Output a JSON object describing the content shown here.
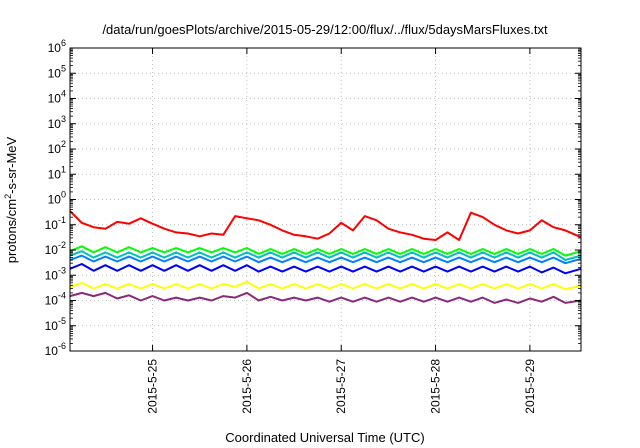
{
  "chart_data": {
    "type": "line",
    "title": "/data/run/goesPlots/archive/2015-05-29/12:00/flux/../flux/5daysMarsFluxes.txt",
    "xlabel": "Coordinated Universal Time (UTC)",
    "ylabel": {
      "pre": "protons/cm",
      "sup": "2",
      "post": "-s-sr-MeV"
    },
    "y_scale": "log",
    "ylim": [
      1e-06,
      1000000.0
    ],
    "y_ticks": [
      {
        "value": 1e-06,
        "base": "10",
        "exp": "-6"
      },
      {
        "value": 1e-05,
        "base": "10",
        "exp": "-5"
      },
      {
        "value": 0.0001,
        "base": "10",
        "exp": "-4"
      },
      {
        "value": 0.001,
        "base": "10",
        "exp": "-3"
      },
      {
        "value": 0.01,
        "base": "10",
        "exp": "-2"
      },
      {
        "value": 0.1,
        "base": "10",
        "exp": "-1"
      },
      {
        "value": 1,
        "base": "10",
        "exp": "0"
      },
      {
        "value": 10,
        "base": "10",
        "exp": "1"
      },
      {
        "value": 100,
        "base": "10",
        "exp": "2"
      },
      {
        "value": 1000,
        "base": "10",
        "exp": "3"
      },
      {
        "value": 10000,
        "base": "10",
        "exp": "4"
      },
      {
        "value": 100000,
        "base": "10",
        "exp": "5"
      },
      {
        "value": 1000000,
        "base": "10",
        "exp": "6"
      }
    ],
    "xlim": [
      "2015-05-24 03:00",
      "2015-05-29 13:00"
    ],
    "x_ticks": [
      {
        "value": "2015-05-25 00:00",
        "label": "2015-5-25"
      },
      {
        "value": "2015-05-26 00:00",
        "label": "2015-5-26"
      },
      {
        "value": "2015-05-27 00:00",
        "label": "2015-5-27"
      },
      {
        "value": "2015-05-28 00:00",
        "label": "2015-5-28"
      },
      {
        "value": "2015-05-29 00:00",
        "label": "2015-5-29"
      }
    ],
    "grid": true,
    "series": [
      {
        "color": "#ff0000",
        "x": [
          "2015-05-24 03:00",
          "2015-05-24 06:00",
          "2015-05-24 09:00",
          "2015-05-24 12:00",
          "2015-05-24 15:00",
          "2015-05-24 18:00",
          "2015-05-24 21:00",
          "2015-05-25 00:00",
          "2015-05-25 03:00",
          "2015-05-25 06:00",
          "2015-05-25 09:00",
          "2015-05-25 12:00",
          "2015-05-25 15:00",
          "2015-05-25 18:00",
          "2015-05-25 21:00",
          "2015-05-26 00:00",
          "2015-05-26 03:00",
          "2015-05-26 06:00",
          "2015-05-26 09:00",
          "2015-05-26 12:00",
          "2015-05-26 15:00",
          "2015-05-26 18:00",
          "2015-05-26 21:00",
          "2015-05-27 00:00",
          "2015-05-27 03:00",
          "2015-05-27 06:00",
          "2015-05-27 09:00",
          "2015-05-27 12:00",
          "2015-05-27 15:00",
          "2015-05-27 18:00",
          "2015-05-27 21:00",
          "2015-05-28 00:00",
          "2015-05-28 03:00",
          "2015-05-28 06:00",
          "2015-05-28 09:00",
          "2015-05-28 12:00",
          "2015-05-28 15:00",
          "2015-05-28 18:00",
          "2015-05-28 21:00",
          "2015-05-29 00:00",
          "2015-05-29 03:00",
          "2015-05-29 06:00",
          "2015-05-29 09:00",
          "2015-05-29 13:00"
        ],
        "y": [
          0.35,
          0.12,
          0.08,
          0.07,
          0.13,
          0.11,
          0.18,
          0.11,
          0.07,
          0.05,
          0.045,
          0.035,
          0.045,
          0.04,
          0.22,
          0.18,
          0.15,
          0.1,
          0.06,
          0.04,
          0.035,
          0.028,
          0.045,
          0.12,
          0.06,
          0.22,
          0.15,
          0.07,
          0.05,
          0.04,
          0.028,
          0.025,
          0.05,
          0.025,
          0.3,
          0.2,
          0.1,
          0.06,
          0.045,
          0.06,
          0.15,
          0.08,
          0.06,
          0.032
        ]
      },
      {
        "color": "#00ff00",
        "x": [
          "2015-05-24 03:00",
          "2015-05-24 06:00",
          "2015-05-24 09:00",
          "2015-05-24 12:00",
          "2015-05-24 15:00",
          "2015-05-24 18:00",
          "2015-05-24 21:00",
          "2015-05-25 00:00",
          "2015-05-25 03:00",
          "2015-05-25 06:00",
          "2015-05-25 09:00",
          "2015-05-25 12:00",
          "2015-05-25 15:00",
          "2015-05-25 18:00",
          "2015-05-25 21:00",
          "2015-05-26 00:00",
          "2015-05-26 03:00",
          "2015-05-26 06:00",
          "2015-05-26 09:00",
          "2015-05-26 12:00",
          "2015-05-26 15:00",
          "2015-05-26 18:00",
          "2015-05-26 21:00",
          "2015-05-27 00:00",
          "2015-05-27 03:00",
          "2015-05-27 06:00",
          "2015-05-27 09:00",
          "2015-05-27 12:00",
          "2015-05-27 15:00",
          "2015-05-27 18:00",
          "2015-05-27 21:00",
          "2015-05-28 00:00",
          "2015-05-28 03:00",
          "2015-05-28 06:00",
          "2015-05-28 09:00",
          "2015-05-28 12:00",
          "2015-05-28 15:00",
          "2015-05-28 18:00",
          "2015-05-28 21:00",
          "2015-05-29 00:00",
          "2015-05-29 03:00",
          "2015-05-29 06:00",
          "2015-05-29 09:00",
          "2015-05-29 13:00"
        ],
        "y": [
          0.009,
          0.014,
          0.008,
          0.013,
          0.008,
          0.013,
          0.008,
          0.012,
          0.008,
          0.012,
          0.008,
          0.012,
          0.008,
          0.012,
          0.008,
          0.012,
          0.007,
          0.011,
          0.007,
          0.011,
          0.007,
          0.011,
          0.007,
          0.011,
          0.007,
          0.011,
          0.007,
          0.011,
          0.007,
          0.011,
          0.007,
          0.011,
          0.007,
          0.011,
          0.007,
          0.011,
          0.007,
          0.011,
          0.007,
          0.011,
          0.007,
          0.011,
          0.006,
          0.009
        ]
      },
      {
        "color": "#00c0c0",
        "x": [
          "2015-05-24 03:00",
          "2015-05-24 06:00",
          "2015-05-24 09:00",
          "2015-05-24 12:00",
          "2015-05-24 15:00",
          "2015-05-24 18:00",
          "2015-05-24 21:00",
          "2015-05-25 00:00",
          "2015-05-25 03:00",
          "2015-05-25 06:00",
          "2015-05-25 09:00",
          "2015-05-25 12:00",
          "2015-05-25 15:00",
          "2015-05-25 18:00",
          "2015-05-25 21:00",
          "2015-05-26 00:00",
          "2015-05-26 03:00",
          "2015-05-26 06:00",
          "2015-05-26 09:00",
          "2015-05-26 12:00",
          "2015-05-26 15:00",
          "2015-05-26 18:00",
          "2015-05-26 21:00",
          "2015-05-27 00:00",
          "2015-05-27 03:00",
          "2015-05-27 06:00",
          "2015-05-27 09:00",
          "2015-05-27 12:00",
          "2015-05-27 15:00",
          "2015-05-27 18:00",
          "2015-05-27 21:00",
          "2015-05-28 00:00",
          "2015-05-28 03:00",
          "2015-05-28 06:00",
          "2015-05-28 09:00",
          "2015-05-28 12:00",
          "2015-05-28 15:00",
          "2015-05-28 18:00",
          "2015-05-28 21:00",
          "2015-05-29 00:00",
          "2015-05-29 03:00",
          "2015-05-29 06:00",
          "2015-05-29 09:00",
          "2015-05-29 13:00"
        ],
        "y": [
          0.006,
          0.009,
          0.005,
          0.008,
          0.005,
          0.008,
          0.005,
          0.008,
          0.005,
          0.008,
          0.005,
          0.008,
          0.005,
          0.008,
          0.005,
          0.008,
          0.005,
          0.008,
          0.005,
          0.008,
          0.005,
          0.008,
          0.005,
          0.008,
          0.005,
          0.008,
          0.005,
          0.008,
          0.005,
          0.008,
          0.005,
          0.008,
          0.005,
          0.008,
          0.005,
          0.008,
          0.005,
          0.008,
          0.005,
          0.008,
          0.005,
          0.008,
          0.004,
          0.006
        ]
      },
      {
        "color": "#0080ff",
        "x": [
          "2015-05-24 03:00",
          "2015-05-24 06:00",
          "2015-05-24 09:00",
          "2015-05-24 12:00",
          "2015-05-24 15:00",
          "2015-05-24 18:00",
          "2015-05-24 21:00",
          "2015-05-25 00:00",
          "2015-05-25 03:00",
          "2015-05-25 06:00",
          "2015-05-25 09:00",
          "2015-05-25 12:00",
          "2015-05-25 15:00",
          "2015-05-25 18:00",
          "2015-05-25 21:00",
          "2015-05-26 00:00",
          "2015-05-26 03:00",
          "2015-05-26 06:00",
          "2015-05-26 09:00",
          "2015-05-26 12:00",
          "2015-05-26 15:00",
          "2015-05-26 18:00",
          "2015-05-26 21:00",
          "2015-05-27 00:00",
          "2015-05-27 03:00",
          "2015-05-27 06:00",
          "2015-05-27 09:00",
          "2015-05-27 12:00",
          "2015-05-27 15:00",
          "2015-05-27 18:00",
          "2015-05-27 21:00",
          "2015-05-28 00:00",
          "2015-05-28 03:00",
          "2015-05-28 06:00",
          "2015-05-28 09:00",
          "2015-05-28 12:00",
          "2015-05-28 15:00",
          "2015-05-28 18:00",
          "2015-05-28 21:00",
          "2015-05-29 00:00",
          "2015-05-29 03:00",
          "2015-05-29 06:00",
          "2015-05-29 09:00",
          "2015-05-29 13:00"
        ],
        "y": [
          0.004,
          0.006,
          0.0035,
          0.0055,
          0.0035,
          0.0055,
          0.0035,
          0.0055,
          0.0035,
          0.0055,
          0.0035,
          0.0055,
          0.0035,
          0.0055,
          0.0035,
          0.0055,
          0.0033,
          0.005,
          0.0033,
          0.005,
          0.0033,
          0.005,
          0.0033,
          0.005,
          0.0033,
          0.005,
          0.0033,
          0.005,
          0.0033,
          0.005,
          0.0033,
          0.005,
          0.0033,
          0.005,
          0.0033,
          0.005,
          0.0033,
          0.005,
          0.0033,
          0.005,
          0.0033,
          0.005,
          0.003,
          0.0045
        ]
      },
      {
        "color": "#0000ff",
        "x": [
          "2015-05-24 03:00",
          "2015-05-24 06:00",
          "2015-05-24 09:00",
          "2015-05-24 12:00",
          "2015-05-24 15:00",
          "2015-05-24 18:00",
          "2015-05-24 21:00",
          "2015-05-25 00:00",
          "2015-05-25 03:00",
          "2015-05-25 06:00",
          "2015-05-25 09:00",
          "2015-05-25 12:00",
          "2015-05-25 15:00",
          "2015-05-25 18:00",
          "2015-05-25 21:00",
          "2015-05-26 00:00",
          "2015-05-26 03:00",
          "2015-05-26 06:00",
          "2015-05-26 09:00",
          "2015-05-26 12:00",
          "2015-05-26 15:00",
          "2015-05-26 18:00",
          "2015-05-26 21:00",
          "2015-05-27 00:00",
          "2015-05-27 03:00",
          "2015-05-27 06:00",
          "2015-05-27 09:00",
          "2015-05-27 12:00",
          "2015-05-27 15:00",
          "2015-05-27 18:00",
          "2015-05-27 21:00",
          "2015-05-28 00:00",
          "2015-05-28 03:00",
          "2015-05-28 06:00",
          "2015-05-28 09:00",
          "2015-05-28 12:00",
          "2015-05-28 15:00",
          "2015-05-28 18:00",
          "2015-05-28 21:00",
          "2015-05-29 00:00",
          "2015-05-29 03:00",
          "2015-05-29 06:00",
          "2015-05-29 09:00",
          "2015-05-29 13:00"
        ],
        "y": [
          0.0018,
          0.0028,
          0.0015,
          0.0025,
          0.0015,
          0.0025,
          0.0015,
          0.0025,
          0.0015,
          0.0025,
          0.0015,
          0.0025,
          0.0015,
          0.0025,
          0.0015,
          0.0025,
          0.0014,
          0.0022,
          0.0014,
          0.0022,
          0.0014,
          0.0022,
          0.0014,
          0.0022,
          0.0014,
          0.0022,
          0.0014,
          0.0022,
          0.0014,
          0.0022,
          0.0014,
          0.0022,
          0.0014,
          0.0022,
          0.0014,
          0.0022,
          0.0014,
          0.0022,
          0.0014,
          0.0022,
          0.0013,
          0.002,
          0.0012,
          0.0018
        ]
      },
      {
        "color": "#ffff00",
        "x": [
          "2015-05-24 03:00",
          "2015-05-24 06:00",
          "2015-05-24 09:00",
          "2015-05-24 12:00",
          "2015-05-24 15:00",
          "2015-05-24 18:00",
          "2015-05-24 21:00",
          "2015-05-25 00:00",
          "2015-05-25 03:00",
          "2015-05-25 06:00",
          "2015-05-25 09:00",
          "2015-05-25 12:00",
          "2015-05-25 15:00",
          "2015-05-25 18:00",
          "2015-05-25 21:00",
          "2015-05-26 00:00",
          "2015-05-26 03:00",
          "2015-05-26 06:00",
          "2015-05-26 09:00",
          "2015-05-26 12:00",
          "2015-05-26 15:00",
          "2015-05-26 18:00",
          "2015-05-26 21:00",
          "2015-05-27 00:00",
          "2015-05-27 03:00",
          "2015-05-27 06:00",
          "2015-05-27 09:00",
          "2015-05-27 12:00",
          "2015-05-27 15:00",
          "2015-05-27 18:00",
          "2015-05-27 21:00",
          "2015-05-28 00:00",
          "2015-05-28 03:00",
          "2015-05-28 06:00",
          "2015-05-28 09:00",
          "2015-05-28 12:00",
          "2015-05-28 15:00",
          "2015-05-28 18:00",
          "2015-05-28 21:00",
          "2015-05-29 00:00",
          "2015-05-29 03:00",
          "2015-05-29 06:00",
          "2015-05-29 09:00",
          "2015-05-29 13:00"
        ],
        "y": [
          0.00035,
          0.0005,
          0.0003,
          0.00045,
          0.0003,
          0.00045,
          0.0003,
          0.00045,
          0.0003,
          0.00045,
          0.0003,
          0.00045,
          0.0003,
          0.00045,
          0.00035,
          0.00055,
          0.0003,
          0.00045,
          0.0003,
          0.00045,
          0.0003,
          0.00045,
          0.0003,
          0.00045,
          0.0003,
          0.00045,
          0.0003,
          0.00045,
          0.0003,
          0.00045,
          0.0003,
          0.00045,
          0.0003,
          0.00045,
          0.0003,
          0.00045,
          0.0003,
          0.00045,
          0.0003,
          0.00045,
          0.0003,
          0.00045,
          0.00028,
          0.00038
        ]
      },
      {
        "color": "#8b2a7a",
        "x": [
          "2015-05-24 03:00",
          "2015-05-24 06:00",
          "2015-05-24 09:00",
          "2015-05-24 12:00",
          "2015-05-24 15:00",
          "2015-05-24 18:00",
          "2015-05-24 21:00",
          "2015-05-25 00:00",
          "2015-05-25 03:00",
          "2015-05-25 06:00",
          "2015-05-25 09:00",
          "2015-05-25 12:00",
          "2015-05-25 15:00",
          "2015-05-25 18:00",
          "2015-05-25 21:00",
          "2015-05-26 00:00",
          "2015-05-26 03:00",
          "2015-05-26 06:00",
          "2015-05-26 09:00",
          "2015-05-26 12:00",
          "2015-05-26 15:00",
          "2015-05-26 18:00",
          "2015-05-26 21:00",
          "2015-05-27 00:00",
          "2015-05-27 03:00",
          "2015-05-27 06:00",
          "2015-05-27 09:00",
          "2015-05-27 12:00",
          "2015-05-27 15:00",
          "2015-05-27 18:00",
          "2015-05-27 21:00",
          "2015-05-28 00:00",
          "2015-05-28 03:00",
          "2015-05-28 06:00",
          "2015-05-28 09:00",
          "2015-05-28 12:00",
          "2015-05-28 15:00",
          "2015-05-28 18:00",
          "2015-05-28 21:00",
          "2015-05-29 00:00",
          "2015-05-29 03:00",
          "2015-05-29 06:00",
          "2015-05-29 09:00",
          "2015-05-29 13:00"
        ],
        "y": [
          0.00015,
          0.0002,
          0.00015,
          0.0002,
          0.00012,
          0.00016,
          0.0001,
          0.00015,
          0.0001,
          0.00013,
          0.0001,
          0.00013,
          0.0001,
          0.00015,
          0.00013,
          0.0002,
          0.0001,
          0.00014,
          0.0001,
          0.00013,
          0.0001,
          0.00013,
          9e-05,
          0.00013,
          9e-05,
          0.00013,
          9e-05,
          0.00013,
          9e-05,
          0.00013,
          9e-05,
          0.00013,
          9e-05,
          0.00013,
          9e-05,
          0.00013,
          8e-05,
          0.00011,
          8e-05,
          0.00012,
          9e-05,
          0.00014,
          8e-05,
          0.0001
        ]
      }
    ]
  }
}
